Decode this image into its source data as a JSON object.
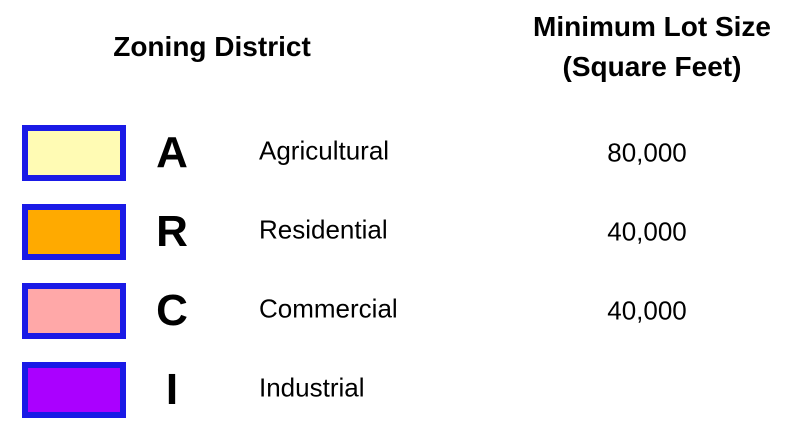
{
  "header": {
    "district": "Zoning District",
    "lot_size": [
      "Minimum Lot Size",
      "(Square Feet)"
    ]
  },
  "rows": [
    {
      "code": "A",
      "name": "Agricultural",
      "lot_size": "80,000",
      "color": "#fffbb4"
    },
    {
      "code": "R",
      "name": "Residential",
      "lot_size": "40,000",
      "color": "#ffaa00"
    },
    {
      "code": "C",
      "name": "Commercial",
      "lot_size": "40,000",
      "color": "#ffa8a8"
    },
    {
      "code": "I",
      "name": "Industrial",
      "color": "#aa00ff"
    }
  ]
}
